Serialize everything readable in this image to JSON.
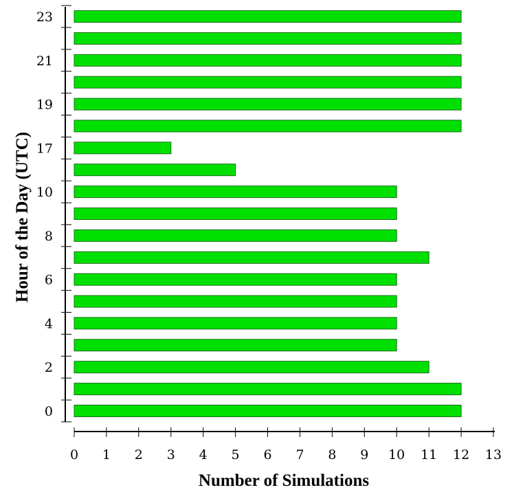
{
  "chart_data": {
    "type": "bar",
    "orientation": "horizontal",
    "title": "",
    "xlabel": "Number of Simulations",
    "ylabel": "Hour of the Day (UTC)",
    "categories": [
      "0",
      "1",
      "2",
      "3",
      "4",
      "5",
      "6",
      "7",
      "8",
      "9",
      "10",
      "16",
      "17",
      "18",
      "19",
      "20",
      "21",
      "22",
      "23"
    ],
    "visible_category_labels": [
      "0",
      "2",
      "4",
      "6",
      "8",
      "10",
      "17",
      "19",
      "21",
      "23"
    ],
    "values": [
      12,
      12,
      11,
      10,
      10,
      10,
      10,
      11,
      10,
      10,
      10,
      5,
      3,
      12,
      12,
      12,
      12,
      12,
      12
    ],
    "xlim": [
      0,
      13
    ],
    "xticks": [
      "0",
      "1",
      "2",
      "3",
      "4",
      "5",
      "6",
      "7",
      "8",
      "9",
      "10",
      "11",
      "12",
      "13"
    ],
    "bar_color": "#00e000",
    "bar_edge_color": "#1a6b1a",
    "grid": false,
    "legend": "none"
  }
}
